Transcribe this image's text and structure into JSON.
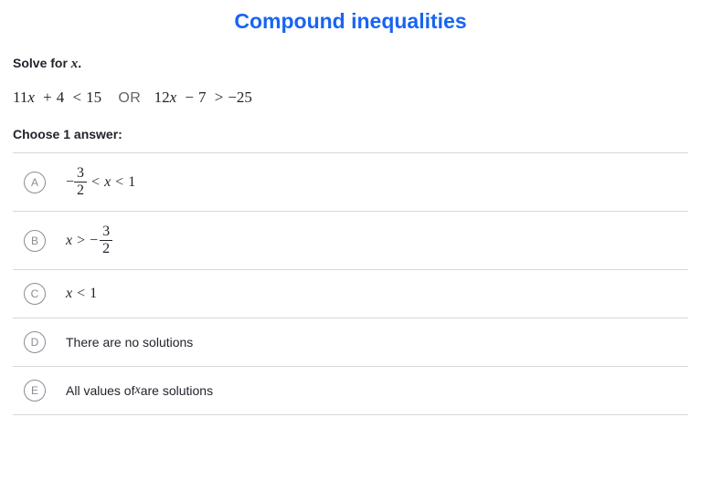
{
  "colors": {
    "title": "#1865f2",
    "or": "#626569",
    "border": "#d6d8da",
    "circle": "#888d93",
    "text": "#21242c",
    "bg": "#ffffff"
  },
  "heading": "Compound inequalities",
  "prompt": {
    "pre": "Solve for ",
    "var": "x",
    "post": "."
  },
  "inequality": {
    "left": {
      "coef": "11",
      "var": "x",
      "op1": "+",
      "c1": "4",
      "rel": "<",
      "rhs": "15"
    },
    "or": "OR",
    "right": {
      "coef": "12",
      "var": "x",
      "op1": "−",
      "c1": "7",
      "rel": ">",
      "rhs": "−25"
    }
  },
  "choose": "Choose 1 answer:",
  "options": [
    {
      "letter": "A",
      "kind": "math-frac-range",
      "neg": "−",
      "num": "3",
      "den": "2",
      "rel1": "<",
      "var": "x",
      "rel2": "<",
      "val": "1"
    },
    {
      "letter": "B",
      "kind": "math-gt-negfrac",
      "var": "x",
      "rel": ">",
      "neg": "−",
      "num": "3",
      "den": "2"
    },
    {
      "letter": "C",
      "kind": "math-simple",
      "var": "x",
      "rel": "<",
      "val": "1"
    },
    {
      "letter": "D",
      "kind": "text",
      "text": "There are no solutions"
    },
    {
      "letter": "E",
      "kind": "text-with-var",
      "pre": "All values of ",
      "var": "x",
      "post": " are solutions"
    }
  ]
}
